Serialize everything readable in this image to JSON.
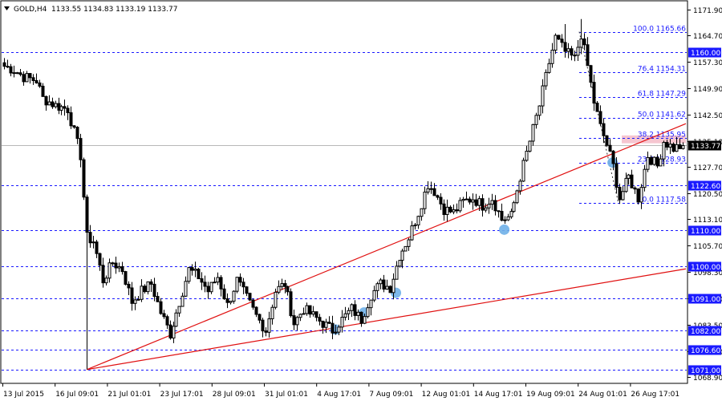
{
  "header": {
    "symbol": "GOLD,H4",
    "ohlc": "1133.55 1134.83 1133.19 1133.77",
    "menu_icon": "triangle-down-icon"
  },
  "colors": {
    "candle": "#000000",
    "level_line": "#1a1aff",
    "trendline": "#e01010",
    "marker": "#6fb0e8",
    "zone": "#f6c6d0",
    "current_price_bg": "#000000",
    "label_bg": "#1a1aff"
  },
  "chart_data": {
    "type": "candlestick",
    "y_axis": {
      "range": [
        1067.35,
        1174.1
      ],
      "ticks": [
        1171.9,
        1164.7,
        1157.3,
        1149.9,
        1142.5,
        1135.1,
        1127.7,
        1120.5,
        1113.1,
        1105.7,
        1098.3,
        1090.9,
        1083.5,
        1076.1,
        1068.9
      ]
    },
    "x_axis": {
      "ticks": [
        "13 Jul 2015",
        "16 Jul 09:01",
        "21 Jul 01:01",
        "23 Jul 17:01",
        "28 Jul 09:01",
        "31 Jul 01:01",
        "4 Aug 17:01",
        "7 Aug 09:01",
        "12 Aug 01:01",
        "14 Aug 17:01",
        "19 Aug 09:01",
        "24 Aug 01:01",
        "26 Aug 17:01"
      ],
      "bars_visible": 214
    },
    "current_price": "1133.77",
    "horizontal_levels": [
      "1160.00",
      "1122.60",
      "1110.00",
      "1100.00",
      "1091.00",
      "1082.00",
      "1076.60",
      "1071.00"
    ],
    "fibonacci": {
      "high": 1165.66,
      "low": 1117.58,
      "levels": [
        {
          "label": "100.0 1165.66",
          "value": 1165.66
        },
        {
          "label": "76.4 1154.31",
          "value": 1154.31
        },
        {
          "label": "61.8 1147.29",
          "value": 1147.29
        },
        {
          "label": "50.0 1141.62",
          "value": 1141.62
        },
        {
          "label": "38.2 1135.95",
          "value": 1135.95
        },
        {
          "label": "23.6 1128.93",
          "value": 1128.93
        },
        {
          "label": "0.0 1117.58",
          "value": 1117.58
        }
      ]
    },
    "highlight_zone": {
      "from": 1134.4,
      "to": 1136.6
    },
    "trendlines": [
      {
        "name": "steep",
        "points": [
          [
            26,
            1071.0
          ],
          [
            214,
            1139.9
          ]
        ]
      },
      {
        "name": "shallow",
        "points": [
          [
            26,
            1071.0
          ],
          [
            214,
            1099.2
          ]
        ]
      }
    ],
    "touch_markers": [
      [
        104,
        1082.2
      ],
      [
        113,
        1087.0
      ],
      [
        123,
        1092.5
      ],
      [
        157,
        1110.2
      ],
      [
        191,
        1129.0
      ]
    ],
    "waypoints": [
      [
        0,
        1156.0
      ],
      [
        3,
        1155.0
      ],
      [
        6,
        1153.0
      ],
      [
        10,
        1152.0
      ],
      [
        12,
        1147.0
      ],
      [
        16,
        1145.0
      ],
      [
        20,
        1144.0
      ],
      [
        24,
        1131.0
      ],
      [
        26,
        1108.0
      ],
      [
        28,
        1107.0
      ],
      [
        31,
        1096.0
      ],
      [
        34,
        1101.0
      ],
      [
        37,
        1099.0
      ],
      [
        40,
        1090.0
      ],
      [
        43,
        1093.0
      ],
      [
        46,
        1095.0
      ],
      [
        49,
        1087.0
      ],
      [
        52,
        1081.0
      ],
      [
        55,
        1090.0
      ],
      [
        58,
        1099.0
      ],
      [
        61,
        1097.0
      ],
      [
        64,
        1093.0
      ],
      [
        67,
        1097.0
      ],
      [
        70,
        1089.0
      ],
      [
        73,
        1096.0
      ],
      [
        76,
        1091.0
      ],
      [
        79,
        1086.0
      ],
      [
        82,
        1082.0
      ],
      [
        85,
        1093.0
      ],
      [
        88,
        1095.0
      ],
      [
        91,
        1084.0
      ],
      [
        94,
        1088.0
      ],
      [
        97,
        1086.0
      ],
      [
        100,
        1084.0
      ],
      [
        103,
        1082.0
      ],
      [
        106,
        1085.0
      ],
      [
        109,
        1088.0
      ],
      [
        112,
        1085.0
      ],
      [
        115,
        1092.0
      ],
      [
        118,
        1095.0
      ],
      [
        121,
        1094.0
      ],
      [
        124,
        1103.0
      ],
      [
        127,
        1108.0
      ],
      [
        130,
        1115.0
      ],
      [
        133,
        1123.0
      ],
      [
        135,
        1121.0
      ],
      [
        138,
        1116.0
      ],
      [
        141,
        1115.0
      ],
      [
        144,
        1118.0
      ],
      [
        147,
        1119.0
      ],
      [
        150,
        1117.0
      ],
      [
        153,
        1119.0
      ],
      [
        156,
        1113.0
      ],
      [
        159,
        1114.0
      ],
      [
        162,
        1125.0
      ],
      [
        165,
        1135.0
      ],
      [
        168,
        1145.0
      ],
      [
        171,
        1157.0
      ],
      [
        173,
        1164.0
      ],
      [
        176,
        1160.0
      ],
      [
        179,
        1158.0
      ],
      [
        181,
        1165.0
      ],
      [
        183,
        1156.0
      ],
      [
        185,
        1146.0
      ],
      [
        187,
        1139.0
      ],
      [
        189,
        1134.0
      ],
      [
        191,
        1128.0
      ],
      [
        193,
        1119.0
      ],
      [
        196,
        1125.0
      ],
      [
        199,
        1119.0
      ],
      [
        202,
        1131.0
      ],
      [
        205,
        1128.0
      ],
      [
        207,
        1135.0
      ],
      [
        210,
        1133.0
      ],
      [
        213,
        1133.77
      ]
    ]
  }
}
